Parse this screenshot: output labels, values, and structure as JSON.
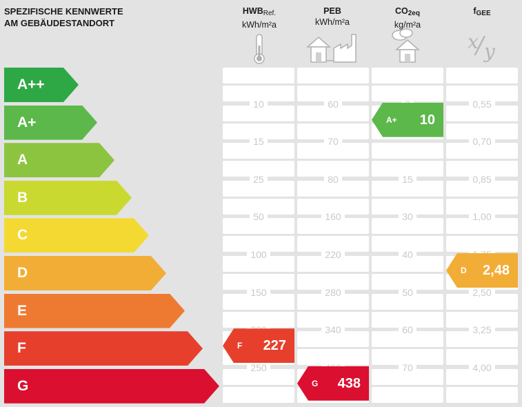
{
  "header": {
    "title_line1": "SPEZIFISCHE KENNWERTE",
    "title_line2": "AM GEBÄUDESTANDORT"
  },
  "columns": [
    {
      "name": "HWB",
      "sub": "Ref.",
      "unit": "kWh/m²a",
      "icon": "thermometer-icon"
    },
    {
      "name": "PEB",
      "sub": "",
      "unit": "kWh/m²a",
      "icon": "house-factory-icon"
    },
    {
      "name": "CO",
      "sub": "2eq",
      "unit": "kg/m²a",
      "icon": "house-cloud-icon"
    },
    {
      "name": "f",
      "sub": "GEE",
      "unit": "",
      "icon": "fraction-xy-icon"
    }
  ],
  "icon_text": {
    "fraction_x": "x",
    "fraction_y": "y"
  },
  "classes": [
    {
      "label": "A++",
      "color": "#2ea845"
    },
    {
      "label": "A+",
      "color": "#5cb84a"
    },
    {
      "label": "A",
      "color": "#8cc43f"
    },
    {
      "label": "B",
      "color": "#c9d930"
    },
    {
      "label": "C",
      "color": "#f4d932"
    },
    {
      "label": "D",
      "color": "#f2ad36"
    },
    {
      "label": "E",
      "color": "#ee7a31"
    },
    {
      "label": "F",
      "color": "#e6402d"
    },
    {
      "label": "G",
      "color": "#db0f2f"
    }
  ],
  "thresholds": {
    "hwb": [
      "10",
      "15",
      "25",
      "50",
      "100",
      "150",
      "200",
      "250"
    ],
    "peb": [
      "60",
      "70",
      "80",
      "160",
      "220",
      "280",
      "340",
      "400"
    ],
    "co2": [
      "8",
      "",
      "15",
      "30",
      "40",
      "50",
      "60",
      "70"
    ],
    "fgee": [
      "0,55",
      "0,70",
      "0,85",
      "1,00",
      "1,75",
      "2,50",
      "3,25",
      "4,00"
    ]
  },
  "ratings": {
    "hwb": {
      "class": "F",
      "value": "227",
      "color": "#e6402d"
    },
    "peb": {
      "class": "G",
      "value": "438",
      "color": "#db0f2f"
    },
    "co2": {
      "class": "A+",
      "value": "10",
      "color": "#5cb84a"
    },
    "fgee": {
      "class": "D",
      "value": "2,48",
      "color": "#f2ad36"
    }
  }
}
